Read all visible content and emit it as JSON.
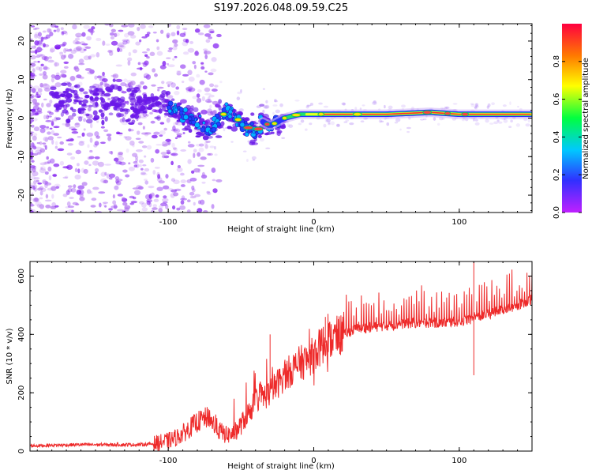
{
  "figure_title": "S197.2026.048.09.59.C25",
  "colors": {
    "snr_line": "#ee2a2a",
    "axis": "#000000",
    "spectrogram_dots": "#7a28f0",
    "colorbar_stops": [
      "#c020ff",
      "#3030ff",
      "#00c8ff",
      "#00ff40",
      "#ffff00",
      "#ff7a00",
      "#ff0040"
    ]
  },
  "chart_data": [
    {
      "type": "heatmap",
      "name": "spectrogram",
      "xlabel": "Height of straight line (km)",
      "ylabel": "Frequency (Hz)",
      "xlim": [
        -195,
        150
      ],
      "ylim": [
        -24.5,
        24.5
      ],
      "xticks": [
        -100,
        0,
        100
      ],
      "xtick_labels": [
        "-100",
        "0",
        "100"
      ],
      "yticks": [
        -20,
        -10,
        0,
        10,
        20
      ],
      "ytick_labels": [
        "-20",
        "-10",
        "0",
        "10",
        "20"
      ],
      "colorbar": {
        "label": "Normalized spectral amplitude",
        "range": [
          0,
          1
        ],
        "ticks": [
          0.0,
          0.2,
          0.4,
          0.6,
          0.8
        ],
        "tick_labels": [
          "0.0",
          "0.2",
          "0.4",
          "0.6",
          "0.8"
        ]
      },
      "ridge": {
        "description_points_x": [
          -110,
          -95,
          -80,
          -70,
          -60,
          -50,
          -40,
          -35,
          -30,
          -20,
          -10,
          0,
          20,
          50,
          80,
          100,
          120,
          150
        ],
        "frequency_hz": [
          4,
          2,
          -1,
          -3,
          2,
          -1,
          -4,
          -1,
          -2,
          0,
          1,
          1,
          1,
          1,
          1.5,
          1,
          1,
          1
        ]
      }
    },
    {
      "type": "line",
      "name": "snr",
      "xlabel": "Height of straight line (km)",
      "ylabel": "SNR (10 * v/v)",
      "xlim": [
        -195,
        150
      ],
      "ylim": [
        0,
        650
      ],
      "xticks": [
        -100,
        0,
        100
      ],
      "xtick_labels": [
        "-100",
        "0",
        "100"
      ],
      "yticks": [
        0,
        200,
        400,
        600
      ],
      "ytick_labels": [
        "0",
        "200",
        "400",
        "600"
      ],
      "series": [
        {
          "name": "SNR",
          "x": [
            -195,
            -180,
            -160,
            -140,
            -120,
            -110,
            -100,
            -95,
            -90,
            -85,
            -80,
            -75,
            -72,
            -70,
            -65,
            -60,
            -55,
            -50,
            -45,
            -40,
            -37,
            -35,
            -30,
            -25,
            -20,
            -15,
            -10,
            -5,
            0,
            5,
            10,
            15,
            20,
            25,
            30,
            40,
            50,
            60,
            70,
            80,
            90,
            100,
            110,
            120,
            130,
            140,
            150
          ],
          "y": [
            18,
            20,
            22,
            22,
            22,
            25,
            35,
            45,
            60,
            80,
            100,
            110,
            120,
            100,
            70,
            55,
            60,
            90,
            130,
            170,
            190,
            185,
            200,
            230,
            260,
            280,
            300,
            310,
            330,
            360,
            380,
            390,
            400,
            410,
            420,
            425,
            430,
            435,
            440,
            440,
            440,
            445,
            455,
            470,
            485,
            500,
            520
          ]
        }
      ],
      "spike_annotations_x": [
        -72,
        -30,
        8,
        78,
        110
      ]
    }
  ]
}
